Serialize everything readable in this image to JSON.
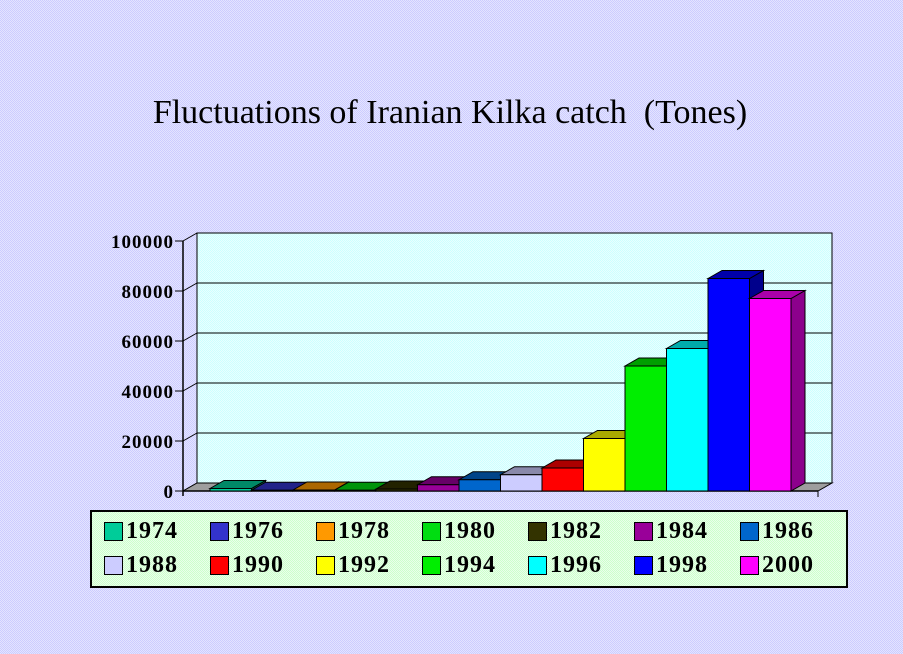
{
  "title": "Fluctuations of Iranian Kilka catch  (Tones)",
  "page": {
    "background_color": "#CCCCFF",
    "wall_color": "#CCFFFF",
    "floor_color": "#9E9E9E",
    "legend_background": "#CCFFCC"
  },
  "chart_data": {
    "type": "bar",
    "style": "3d-column",
    "title": "Fluctuations of Iranian Kilka catch  (Tones)",
    "xlabel": "",
    "ylabel": "",
    "categories": [
      "1974",
      "1976",
      "1978",
      "1980",
      "1982",
      "1984",
      "1986",
      "1988",
      "1990",
      "1992",
      "1994",
      "1996",
      "1998",
      "2000"
    ],
    "values": [
      1000,
      300,
      400,
      300,
      800,
      2500,
      4500,
      6500,
      9200,
      21000,
      50000,
      57000,
      85000,
      77000
    ],
    "colors": [
      "#00CC99",
      "#3333CC",
      "#FF9900",
      "#00DD11",
      "#333300",
      "#990099",
      "#0066CC",
      "#CCCCFF",
      "#FF0000",
      "#FFFF00",
      "#00EE00",
      "#00FFFF",
      "#0000FF",
      "#FF00FF"
    ],
    "ylim": [
      0,
      100000
    ],
    "yticks": [
      0,
      20000,
      40000,
      60000,
      80000,
      100000
    ],
    "ytick_labels": [
      "0",
      "20000",
      "40000",
      "60000",
      "80000",
      "100000"
    ],
    "grid": true,
    "legend_position": "bottom",
    "legend_rows": 2
  }
}
